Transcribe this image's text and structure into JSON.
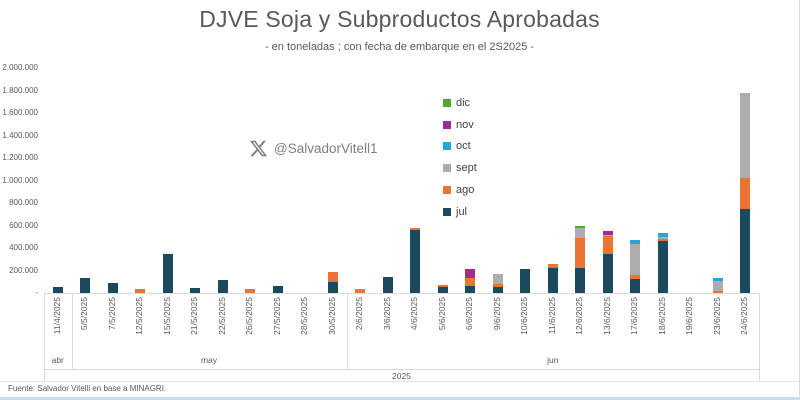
{
  "header": {
    "title": "DJVE Soja y Subproductos Aprobadas",
    "subtitle": "- en toneladas ; con fecha de embarque en el 2S2025 -"
  },
  "watermark": {
    "icon": "x-twitter-logo",
    "handle": "@SalvadorVitell1"
  },
  "footer": {
    "source": "Fuente: Salvador Vitelli en base a MINAGRI."
  },
  "chart_data": {
    "type": "bar",
    "stacked": true,
    "title": "DJVE Soja y Subproductos Aprobadas",
    "subtitle": "- en toneladas ; con fecha de embarque en el 2S2025 -",
    "unit": "toneladas",
    "grid": false,
    "categories": [
      "11/4/2025",
      "5/5/2025",
      "7/5/2025",
      "12/5/2025",
      "15/5/2025",
      "21/5/2025",
      "22/5/2025",
      "26/5/2025",
      "27/5/2025",
      "28/5/2025",
      "30/5/2025",
      "2/6/2025",
      "3/6/2025",
      "4/6/2025",
      "5/6/2025",
      "6/6/2025",
      "9/6/2025",
      "10/6/2025",
      "11/6/2025",
      "12/6/2025",
      "13/6/2025",
      "17/6/2025",
      "18/6/2025",
      "19/6/2025",
      "23/6/2025",
      "24/6/2025"
    ],
    "series": [
      {
        "name": "jul",
        "color": "#1B4A5E",
        "values": [
          50000,
          130000,
          90000,
          0,
          350000,
          45000,
          120000,
          0,
          65000,
          0,
          100000,
          0,
          140000,
          560000,
          50000,
          65000,
          55000,
          210000,
          225000,
          220000,
          350000,
          125000,
          460000,
          0,
          0,
          750000
        ]
      },
      {
        "name": "ago",
        "color": "#EA7434",
        "values": [
          0,
          0,
          0,
          40000,
          0,
          0,
          0,
          35000,
          0,
          0,
          85000,
          40000,
          0,
          20000,
          20000,
          65000,
          25000,
          0,
          35000,
          265000,
          155000,
          35000,
          20000,
          0,
          20000,
          270000
        ]
      },
      {
        "name": "sept",
        "color": "#ADADAD",
        "values": [
          0,
          0,
          0,
          0,
          0,
          0,
          0,
          0,
          0,
          0,
          0,
          0,
          0,
          0,
          0,
          0,
          85000,
          0,
          0,
          95000,
          15000,
          275000,
          15000,
          0,
          85000,
          760000
        ]
      },
      {
        "name": "oct",
        "color": "#29A3DC",
        "values": [
          0,
          0,
          0,
          0,
          0,
          0,
          0,
          0,
          0,
          0,
          0,
          0,
          0,
          0,
          0,
          0,
          0,
          0,
          0,
          0,
          0,
          35000,
          35000,
          0,
          30000,
          0
        ]
      },
      {
        "name": "nov",
        "color": "#A02B93",
        "values": [
          0,
          0,
          0,
          0,
          0,
          0,
          0,
          0,
          0,
          0,
          0,
          0,
          0,
          0,
          0,
          85000,
          0,
          0,
          0,
          0,
          30000,
          0,
          0,
          0,
          0,
          0
        ]
      },
      {
        "name": "dic",
        "color": "#4EA72E",
        "values": [
          0,
          0,
          0,
          0,
          0,
          0,
          0,
          0,
          0,
          0,
          0,
          0,
          0,
          0,
          0,
          0,
          0,
          0,
          0,
          15000,
          0,
          0,
          0,
          0,
          0,
          0
        ]
      }
    ],
    "legend": {
      "position": "middle-right",
      "order_top_to_bottom": [
        "dic",
        "nov",
        "oct",
        "sept",
        "ago",
        "jul"
      ]
    },
    "y_axis": {
      "min": 0,
      "max": 2000000,
      "tick_interval": 200000,
      "ticks": [
        {
          "label": "2.000.000",
          "value": 2000000
        },
        {
          "label": "1.800.000",
          "value": 1800000
        },
        {
          "label": "1.600.000",
          "value": 1600000
        },
        {
          "label": "1.400.000",
          "value": 1400000
        },
        {
          "label": "1.200.000",
          "value": 1200000
        },
        {
          "label": "1.000.000",
          "value": 1000000
        },
        {
          "label": "800.000",
          "value": 800000
        },
        {
          "label": "600.000",
          "value": 600000
        },
        {
          "label": "400.000",
          "value": 400000
        },
        {
          "label": "200.000",
          "value": 200000
        },
        {
          "label": "-",
          "value": 0
        }
      ]
    },
    "x_axis": {
      "month_groups": [
        {
          "label": "abr",
          "count": 1
        },
        {
          "label": "may",
          "count": 10
        },
        {
          "label": "jun",
          "count": 15
        }
      ],
      "year_label": "2025"
    }
  },
  "colors": {
    "text": "#595959",
    "axis_line": "#D9D9D9",
    "watermark": "#7F7F7F"
  }
}
